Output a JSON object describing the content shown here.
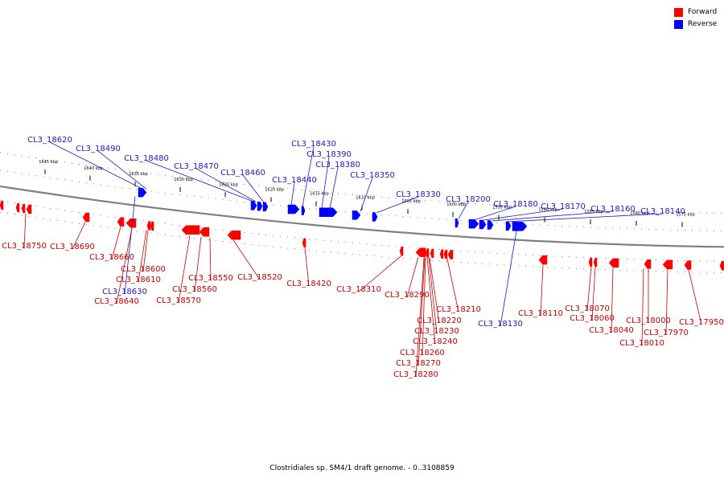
{
  "legend": [
    {
      "label": "Forward",
      "color": "#ff0000"
    },
    {
      "label": "Reverse",
      "color": "#0000ff"
    }
  ],
  "caption": "Clostridiales sp. SM4/1 draft genome. - 0..3108859",
  "colors": {
    "forward": "#ff0000",
    "reverse": "#0000ff",
    "axis": "#808080",
    "label_forward": "#cc0000",
    "label_reverse": "#1a1acc"
  },
  "scale_ticks": [
    "1645 kbp",
    "1640 kbp",
    "1635 kbp",
    "1630 kbp",
    "1625 kbp",
    "1620 kbp",
    "1615 kbp",
    "1610 kbp",
    "1605 kbp",
    "1600 kbp",
    "1595 kbp",
    "1590 kbp",
    "1585 kbp",
    "1580 kbp",
    "1575 kbp"
  ],
  "genes_reverse": [
    "CL3_18620",
    "CL3_18490",
    "CL3_18480",
    "CL3_18470",
    "CL3_18460",
    "CL3_18440",
    "CL3_18430",
    "CL3_18390",
    "CL3_18380",
    "CL3_18350",
    "CL3_18330",
    "CL3_18200",
    "CL3_18180",
    "CL3_18170",
    "CL3_18160",
    "CL3_18140",
    "CL3_18630",
    "CL3_18130"
  ],
  "genes_forward": [
    "CL3_18750",
    "CL3_18690",
    "CL3_18660",
    "CL3_18600",
    "CL3_18610",
    "CL3_18640",
    "CL3_18570",
    "CL3_18560",
    "CL3_18550",
    "CL3_18520",
    "CL3_18420",
    "CL3_18310",
    "CL3_18290",
    "CL3_18210",
    "CL3_18220",
    "CL3_18230",
    "CL3_18240",
    "CL3_18260",
    "CL3_18270",
    "CL3_18280",
    "CL3_18110",
    "CL3_18070",
    "CL3_18060",
    "CL3_18040",
    "CL3_18000",
    "CL3_17970",
    "CL3_18010",
    "CL3_17950"
  ]
}
